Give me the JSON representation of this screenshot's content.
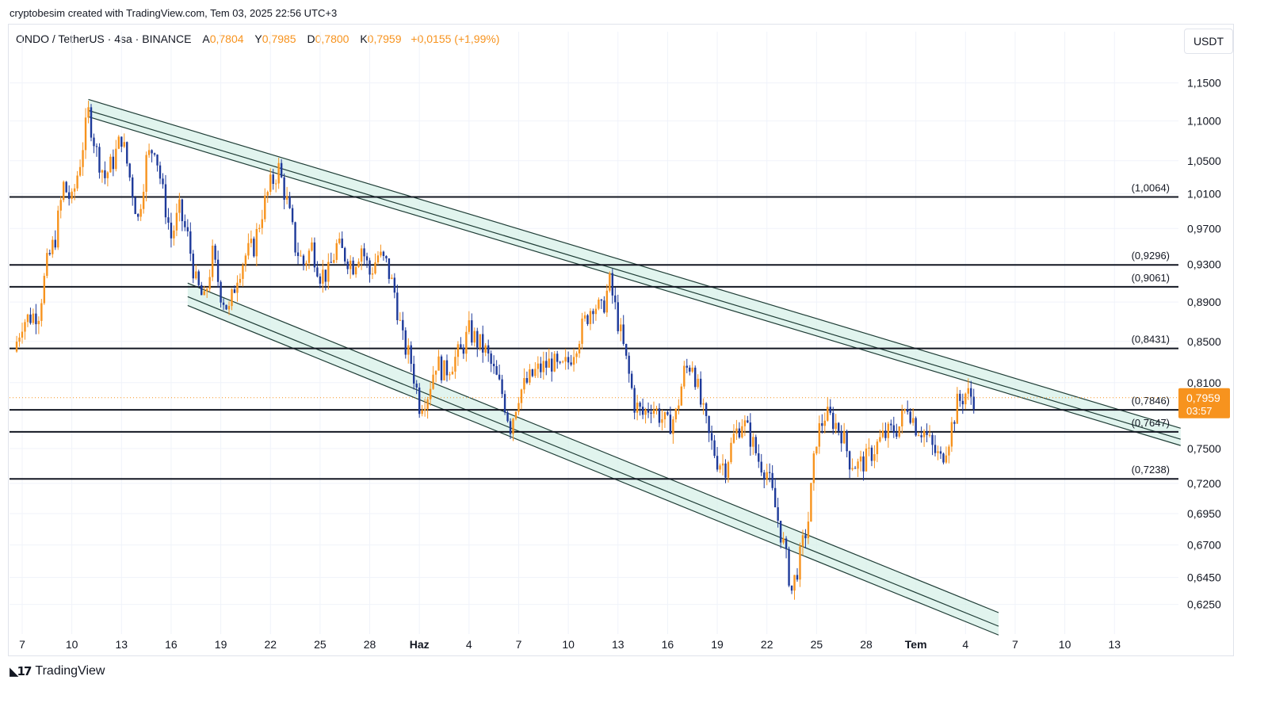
{
  "header": {
    "credit": "cryptobesim created with TradingView.com, Tem 03, 2025 22:56 UTC+3",
    "symbol": "ONDO / TetherUS · 4sa · BINANCE",
    "o_label": "A",
    "o_value": "0,7804",
    "h_label": "Y",
    "h_value": "0,7985",
    "l_label": "D",
    "l_value": "0,7800",
    "c_label": "K",
    "c_value": "0,7959",
    "change": "+0,0155 (+1,99%)"
  },
  "unit_button": "USDT",
  "footer": {
    "brand": "TradingView"
  },
  "colors": {
    "up": "#f7931e",
    "down": "#1e3a9a",
    "channel_fill": "#d4efe7",
    "channel_line": "#1f3d36",
    "level_line": "#131722",
    "price_tag": "#f7931e",
    "grid": "#f0f3fa"
  },
  "chart_data": {
    "type": "candlestick",
    "y_scale": "log",
    "ylim": [
      0.615,
      1.17
    ],
    "y_ticks": [
      "1,1500",
      "1,1000",
      "1,0500",
      "1,0100",
      "0,9700",
      "0,9300",
      "0,8900",
      "0,8500",
      "0,8100",
      "0,7500",
      "0,7200",
      "0,6950",
      "0,6700",
      "0,6450",
      "0,6250"
    ],
    "x_ticks": [
      "7",
      "10",
      "13",
      "16",
      "19",
      "22",
      "25",
      "28",
      "Haz",
      "4",
      "7",
      "10",
      "13",
      "16",
      "19",
      "22",
      "25",
      "28",
      "Tem",
      "4",
      "7",
      "10",
      "13"
    ],
    "x_tick_bold": [
      "Haz",
      "Tem"
    ],
    "price_path": [
      [
        "May 06 12:00",
        0.84
      ],
      [
        "May 07",
        0.87
      ],
      [
        "May 08",
        0.88
      ],
      [
        "May 08 12:00",
        0.93
      ],
      [
        "May 09",
        0.96
      ],
      [
        "May 09 12:00",
        1.02
      ],
      [
        "May 10",
        1.0
      ],
      [
        "May 10 12:00",
        1.05
      ],
      [
        "May 11",
        1.11
      ],
      [
        "May 11 12:00",
        1.06
      ],
      [
        "May 12",
        1.03
      ],
      [
        "May 12 12:00",
        1.05
      ],
      [
        "May 13",
        1.08
      ],
      [
        "May 13 12:00",
        1.03
      ],
      [
        "May 14",
        0.98
      ],
      [
        "May 14 12:00",
        1.05
      ],
      [
        "May 15",
        1.07
      ],
      [
        "May 15 12:00",
        1.01
      ],
      [
        "May 16",
        0.96
      ],
      [
        "May 16 12:00",
        0.99
      ],
      [
        "May 17",
        0.96
      ],
      [
        "May 17 12:00",
        0.91
      ],
      [
        "May 18",
        0.89
      ],
      [
        "May 18 12:00",
        0.94
      ],
      [
        "May 19",
        0.9
      ],
      [
        "May 19 12:00",
        0.88
      ],
      [
        "May 20",
        0.92
      ],
      [
        "May 20 12:00",
        0.94
      ],
      [
        "May 21",
        0.95
      ],
      [
        "May 21 12:00",
        0.99
      ],
      [
        "May 22",
        1.02
      ],
      [
        "May 22 12:00",
        1.04
      ],
      [
        "May 23",
        1.0
      ],
      [
        "May 23 12:00",
        0.95
      ],
      [
        "May 24",
        0.93
      ],
      [
        "May 24 12:00",
        0.95
      ],
      [
        "May 25",
        0.92
      ],
      [
        "May 25 12:00",
        0.92
      ],
      [
        "May 26",
        0.95
      ],
      [
        "May 26 12:00",
        0.94
      ],
      [
        "May 27",
        0.93
      ],
      [
        "May 27 12:00",
        0.95
      ],
      [
        "May 28",
        0.92
      ],
      [
        "May 28 12:00",
        0.94
      ],
      [
        "May 29",
        0.93
      ],
      [
        "May 29 12:00",
        0.9
      ],
      [
        "May 30",
        0.85
      ],
      [
        "May 30 12:00",
        0.83
      ],
      [
        "May 31",
        0.79
      ],
      [
        "May 31 12:00",
        0.8
      ],
      [
        "Jun 01",
        0.83
      ],
      [
        "Jun 01 12:00",
        0.82
      ],
      [
        "Jun 02",
        0.83
      ],
      [
        "Jun 02 12:00",
        0.84
      ],
      [
        "Jun 03",
        0.86
      ],
      [
        "Jun 03 12:00",
        0.85
      ],
      [
        "Jun 04",
        0.84
      ],
      [
        "Jun 04 12:00",
        0.82
      ],
      [
        "Jun 05",
        0.8
      ],
      [
        "Jun 05 12:00",
        0.77
      ],
      [
        "Jun 06",
        0.8
      ],
      [
        "Jun 06 12:00",
        0.81
      ],
      [
        "Jun 07",
        0.82
      ],
      [
        "Jun 07 12:00",
        0.825
      ],
      [
        "Jun 08",
        0.83
      ],
      [
        "Jun 08 12:00",
        0.82
      ],
      [
        "Jun 09",
        0.83
      ],
      [
        "Jun 09 12:00",
        0.85
      ],
      [
        "Jun 10",
        0.87
      ],
      [
        "Jun 10 12:00",
        0.89
      ],
      [
        "Jun 11",
        0.88
      ],
      [
        "Jun 11 12:00",
        0.91
      ],
      [
        "Jun 12",
        0.87
      ],
      [
        "Jun 12 12:00",
        0.83
      ],
      [
        "Jun 13",
        0.79
      ],
      [
        "Jun 13 12:00",
        0.78
      ],
      [
        "Jun 14",
        0.79
      ],
      [
        "Jun 14 12:00",
        0.78
      ],
      [
        "Jun 15",
        0.77
      ],
      [
        "Jun 15 12:00",
        0.78
      ],
      [
        "Jun 16",
        0.82
      ],
      [
        "Jun 16 12:00",
        0.83
      ],
      [
        "Jun 17",
        0.79
      ],
      [
        "Jun 17 12:00",
        0.76
      ],
      [
        "Jun 18",
        0.74
      ],
      [
        "Jun 18 12:00",
        0.735
      ],
      [
        "Jun 19",
        0.76
      ],
      [
        "Jun 19 12:00",
        0.775
      ],
      [
        "Jun 20",
        0.76
      ],
      [
        "Jun 20 12:00",
        0.74
      ],
      [
        "Jun 21",
        0.73
      ],
      [
        "Jun 21 12:00",
        0.7
      ],
      [
        "Jun 22",
        0.67
      ],
      [
        "Jun 22 12:00",
        0.635
      ],
      [
        "Jun 23",
        0.66
      ],
      [
        "Jun 23 12:00",
        0.69
      ],
      [
        "Jun 24",
        0.76
      ],
      [
        "Jun 24 12:00",
        0.78
      ],
      [
        "Jun 25",
        0.775
      ],
      [
        "Jun 25 12:00",
        0.765
      ],
      [
        "Jun 26",
        0.74
      ],
      [
        "Jun 26 12:00",
        0.735
      ],
      [
        "Jun 27",
        0.74
      ],
      [
        "Jun 27 12:00",
        0.75
      ],
      [
        "Jun 28",
        0.76
      ],
      [
        "Jun 28 12:00",
        0.765
      ],
      [
        "Jun 29",
        0.77
      ],
      [
        "Jun 29 12:00",
        0.79
      ],
      [
        "Jun 30",
        0.77
      ],
      [
        "Jun 30 12:00",
        0.765
      ],
      [
        "Jul 01",
        0.75
      ],
      [
        "Jul 01 12:00",
        0.74
      ],
      [
        "Jul 02",
        0.76
      ],
      [
        "Jul 02 12:00",
        0.79
      ],
      [
        "Jul 03",
        0.8
      ],
      [
        "Jul 03 12:00",
        0.7959
      ]
    ],
    "levels": [
      {
        "value": 1.0064,
        "label": "(1,0064)"
      },
      {
        "value": 0.9296,
        "label": "(0,9296)"
      },
      {
        "value": 0.9061,
        "label": "(0,9061)"
      },
      {
        "value": 0.8431,
        "label": "(0,8431)"
      },
      {
        "value": 0.7846,
        "label": "(0,7846)"
      },
      {
        "value": 0.7647,
        "label": "(0,7647)"
      },
      {
        "value": 0.7238,
        "label": "(0,7238)"
      }
    ],
    "upper_channel": {
      "start": [
        "May 11",
        1.128
      ],
      "end": [
        "Jul 16",
        0.768
      ],
      "width": 0.012
    },
    "lower_channel": {
      "start": [
        "May 17",
        0.91
      ],
      "end": [
        "Jul 05",
        0.619
      ],
      "width": 0.018
    },
    "last_price": {
      "value": "0,7959",
      "countdown": "03:57"
    }
  }
}
